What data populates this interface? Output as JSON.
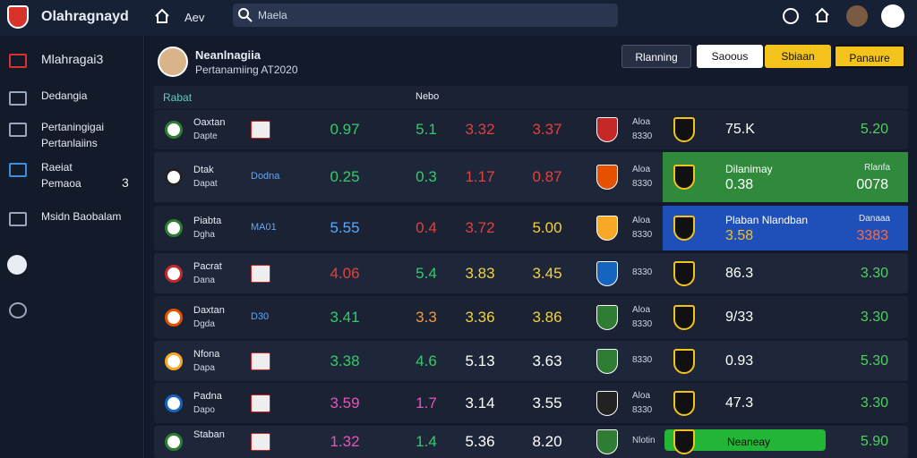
{
  "topbar": {
    "brand": "Olahragnayd",
    "nav": "Aev",
    "search": "Maela"
  },
  "sidebar": {
    "items": [
      {
        "label": "Mlahragai3"
      },
      {
        "label": "Dedangia"
      },
      {
        "label": "Pertaningigai",
        "sub": "Pertanlaiins"
      },
      {
        "label": "Raeiat",
        "sub": "Pemaoa",
        "badge": "3"
      },
      {
        "label": "Msidn Baobalam"
      }
    ]
  },
  "header": {
    "title": "Neanlnagiia",
    "subtitle": "Pertanamiing AT2020",
    "buttons": [
      "Rlanning",
      "Saoous",
      "Sbiaan",
      "Panaure"
    ]
  },
  "table": {
    "columns": [
      "Rabat",
      "Nebo"
    ],
    "rows": [
      {
        "name": "Oaxtan",
        "sub": "Dapte",
        "odds": [
          {
            "text": "0.97",
            "color": "#37c96b"
          },
          {
            "text": "5.1",
            "color": "#37c96b"
          },
          {
            "text": "3.32",
            "color": "#e2403f"
          },
          {
            "text": "3.37",
            "color": "#e2403f"
          }
        ],
        "team2": "Aloa",
        "code": "8330",
        "right": {
          "value": "75.K"
        },
        "final": {
          "value": "5.20"
        }
      },
      {
        "name": "Dtak",
        "sub": "Dapat",
        "tag": "Dodna",
        "odds": [
          {
            "text": "0.25",
            "color": "#37c96b"
          },
          {
            "text": "0.3",
            "color": "#37c96b"
          },
          {
            "text": "1.17",
            "color": "#e2403f"
          },
          {
            "text": "0.87",
            "color": "#e2403f"
          }
        ],
        "team2": "Aloa",
        "code": "8330",
        "right": {
          "label": "Dilanimay",
          "value": "0.38"
        },
        "final": {
          "label": "Rlanfa",
          "value": "0078"
        },
        "highlight": "#2f8a3c"
      },
      {
        "name": "Piabta",
        "sub": "Dgha",
        "tag": "MA01",
        "odds": [
          {
            "text": "5.55",
            "color": "#5aa9ff"
          },
          {
            "text": "0.4",
            "color": "#e2403f"
          },
          {
            "text": "3.72",
            "color": "#e2403f"
          },
          {
            "text": "5.00",
            "color": "#f2d23c"
          }
        ],
        "team2": "Aloa",
        "code": "8330",
        "right": {
          "label": "Plaban Nlandban",
          "value": "3.58"
        },
        "final": {
          "label": "Danaaa",
          "value": "3383"
        },
        "highlight": "#1f4fb8"
      },
      {
        "name": "Pacrat",
        "sub": "Dana",
        "odds": [
          {
            "text": "4.06",
            "color": "#e2403f"
          },
          {
            "text": "5.4",
            "color": "#37c96b"
          },
          {
            "text": "3.83",
            "color": "#f2d23c"
          },
          {
            "text": "3.45",
            "color": "#f2d23c"
          }
        ],
        "team2": "8330",
        "right": {
          "value": "86.3"
        },
        "final": {
          "value": "3.30"
        }
      },
      {
        "name": "Daxtan",
        "sub": "Dgda",
        "tag": "D30",
        "odds": [
          {
            "text": "3.41",
            "color": "#37c96b"
          },
          {
            "text": "3.3",
            "color": "#f29a3c"
          },
          {
            "text": "3.36",
            "color": "#f2d23c"
          },
          {
            "text": "3.86",
            "color": "#f2d23c"
          }
        ],
        "team2": "Aloa",
        "code": "8330",
        "right": {
          "value": "9/33"
        },
        "final": {
          "value": "3.30"
        }
      },
      {
        "name": "Nfona",
        "sub": "Dapa",
        "odds": [
          {
            "text": "3.38",
            "color": "#37c96b"
          },
          {
            "text": "4.6",
            "color": "#37c96b"
          },
          {
            "text": "5.13",
            "color": "#ffffff"
          },
          {
            "text": "3.63",
            "color": "#ffffff"
          }
        ],
        "team2": "8330",
        "right": {
          "value": "0.93"
        },
        "final": {
          "value": "5.30"
        }
      },
      {
        "name": "Padna",
        "sub": "Dapo",
        "odds": [
          {
            "text": "3.59",
            "color": "#e356b8"
          },
          {
            "text": "1.7",
            "color": "#e356b8"
          },
          {
            "text": "3.14",
            "color": "#ffffff"
          },
          {
            "text": "3.55",
            "color": "#ffffff"
          }
        ],
        "team2": "Aloa",
        "code": "8330",
        "right": {
          "value": "47.3"
        },
        "final": {
          "value": "3.30"
        }
      },
      {
        "name": "Staban",
        "odds": [
          {
            "text": "1.32",
            "color": "#e356b8"
          },
          {
            "text": "1.4",
            "color": "#37c96b"
          },
          {
            "text": "5.36",
            "color": "#ffffff"
          },
          {
            "text": "8.20",
            "color": "#ffffff"
          }
        ],
        "team2": "Nlotin",
        "right": {
          "label": "Neaneay"
        },
        "final": {
          "value": "5.90"
        },
        "bar": "#22b536"
      }
    ]
  }
}
